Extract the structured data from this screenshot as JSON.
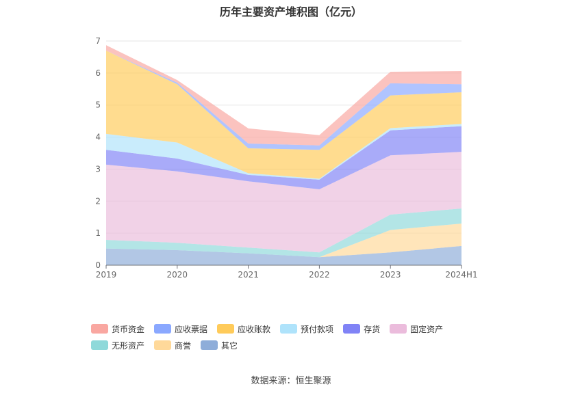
{
  "chart_data": {
    "type": "area",
    "stacked": true,
    "title": "历年主要资产堆积图（亿元）",
    "xlabel": "",
    "ylabel": "",
    "categories": [
      "2019",
      "2020",
      "2021",
      "2022",
      "2023",
      "2024H1"
    ],
    "ylim": [
      0,
      7
    ],
    "yticks": [
      "0",
      "1",
      "2",
      "3",
      "4",
      "5",
      "6",
      "7"
    ],
    "grid": true,
    "legend_position": "bottom",
    "series": [
      {
        "name": "其它",
        "color": "#8eadd9",
        "values": [
          0.52,
          0.47,
          0.37,
          0.25,
          0.4,
          0.6
        ]
      },
      {
        "name": "商誉",
        "color": "#ffd99a",
        "values": [
          0.0,
          0.0,
          0.0,
          0.0,
          0.7,
          0.7
        ]
      },
      {
        "name": "无形资产",
        "color": "#8fd9da",
        "values": [
          0.27,
          0.23,
          0.18,
          0.15,
          0.48,
          0.47
        ]
      },
      {
        "name": "固定资产",
        "color": "#ebbcdc",
        "values": [
          2.35,
          2.23,
          2.07,
          1.97,
          1.85,
          1.77
        ]
      },
      {
        "name": "存货",
        "color": "#8083f6",
        "values": [
          0.46,
          0.4,
          0.2,
          0.3,
          0.78,
          0.8
        ]
      },
      {
        "name": "预付款项",
        "color": "#afe3fb",
        "values": [
          0.5,
          0.5,
          0.05,
          0.03,
          0.07,
          0.07
        ]
      },
      {
        "name": "应收账款",
        "color": "#ffcb5a",
        "values": [
          2.6,
          1.82,
          0.78,
          0.9,
          1.02,
          0.99
        ]
      },
      {
        "name": "应收票据",
        "color": "#8aa8ff",
        "values": [
          0.0,
          0.05,
          0.15,
          0.14,
          0.38,
          0.25
        ]
      },
      {
        "name": "货币资金",
        "color": "#f9a7a1",
        "values": [
          0.17,
          0.08,
          0.47,
          0.32,
          0.36,
          0.41
        ]
      }
    ],
    "legend_order": [
      "货币资金",
      "应收票据",
      "应收账款",
      "预付款项",
      "存货",
      "固定资产",
      "无形资产",
      "商誉",
      "其它"
    ]
  },
  "source": "数据来源：恒生聚源"
}
